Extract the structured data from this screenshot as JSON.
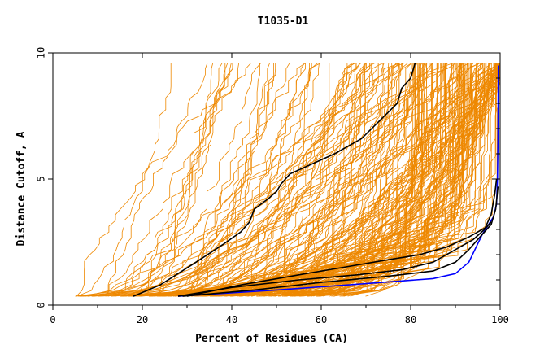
{
  "chart_data": {
    "type": "line",
    "title": "T1035-D1",
    "xlabel": "Percent of Residues (CA)",
    "ylabel": "Distance Cutoff, A",
    "xlim": [
      0,
      100
    ],
    "ylim": [
      0,
      10
    ],
    "x_ticks": [
      "0",
      "20",
      "40",
      "60",
      "80",
      "100"
    ],
    "y_ticks": [
      "0",
      "5",
      "10"
    ],
    "grid": false,
    "colors": {
      "background_curves": "#ee8800",
      "highlight_black": "#000000",
      "highlight_blue": "#0000ff"
    },
    "series": [
      {
        "color": "#0000ff",
        "points": [
          [
            28,
            0.35
          ],
          [
            50,
            0.6
          ],
          [
            70,
            0.85
          ],
          [
            85,
            1.05
          ],
          [
            90,
            1.25
          ],
          [
            93,
            1.7
          ],
          [
            96,
            2.8
          ],
          [
            98.5,
            3.5
          ],
          [
            99.2,
            4.0
          ],
          [
            99.4,
            5.0
          ],
          [
            99.5,
            6.5
          ],
          [
            99.6,
            9.5
          ]
        ]
      },
      {
        "color": "#000000",
        "points": [
          [
            29,
            0.35
          ],
          [
            45,
            0.6
          ],
          [
            60,
            0.9
          ],
          [
            75,
            1.15
          ],
          [
            85,
            1.35
          ],
          [
            90,
            1.7
          ],
          [
            93,
            2.2
          ],
          [
            96,
            2.8
          ],
          [
            98,
            3.2
          ],
          [
            99,
            3.8
          ],
          [
            99.3,
            4.3
          ],
          [
            99.5,
            4.7
          ]
        ]
      },
      {
        "color": "#000000",
        "points": [
          [
            28,
            0.35
          ],
          [
            40,
            0.7
          ],
          [
            55,
            1.0
          ],
          [
            68,
            1.2
          ],
          [
            78,
            1.4
          ],
          [
            85,
            1.7
          ],
          [
            90,
            2.2
          ],
          [
            94,
            2.6
          ],
          [
            96.5,
            3.0
          ],
          [
            98,
            3.6
          ],
          [
            98.8,
            4.4
          ],
          [
            99.2,
            5.0
          ]
        ]
      },
      {
        "color": "#000000",
        "points": [
          [
            30,
            0.35
          ],
          [
            42,
            0.8
          ],
          [
            55,
            1.2
          ],
          [
            65,
            1.5
          ],
          [
            75,
            1.8
          ],
          [
            82,
            2.0
          ],
          [
            88,
            2.3
          ],
          [
            93,
            2.7
          ],
          [
            97,
            3.1
          ],
          [
            98,
            3.3
          ]
        ]
      },
      {
        "color": "#000000",
        "points": [
          [
            18,
            0.35
          ],
          [
            24,
            0.8
          ],
          [
            32,
            1.7
          ],
          [
            38,
            2.4
          ],
          [
            42,
            2.9
          ],
          [
            44,
            3.3
          ],
          [
            45,
            3.8
          ],
          [
            48,
            4.2
          ],
          [
            50,
            4.5
          ],
          [
            51,
            4.8
          ],
          [
            53,
            5.2
          ],
          [
            58,
            5.6
          ],
          [
            63,
            6.0
          ],
          [
            69,
            6.6
          ],
          [
            73,
            7.3
          ],
          [
            77,
            8.0
          ],
          [
            78,
            8.6
          ],
          [
            80,
            9.0
          ],
          [
            81,
            9.6
          ]
        ]
      }
    ]
  }
}
